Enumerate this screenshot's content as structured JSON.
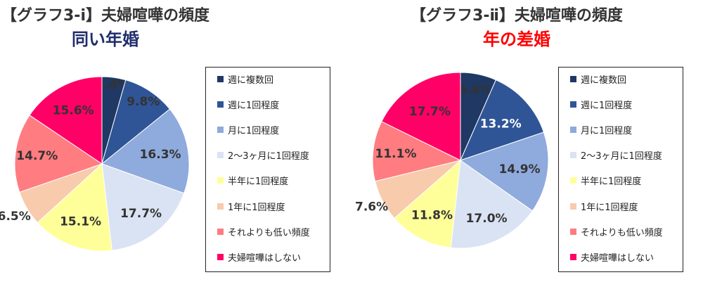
{
  "chart_data": [
    {
      "type": "pie",
      "title": "【グラフ3-ⅰ】夫婦喧嘩の頻度",
      "subtitle": "同い年婚",
      "subtitle_color": "#1f2d6b",
      "categories": [
        "週に複数回",
        "週に1回程度",
        "月に1回程度",
        "2～3ヶ月に1回程度",
        "半年に1回程度",
        "1年に1回程度",
        "それよりも低い頻度",
        "夫婦喧嘩はしない"
      ],
      "values": [
        4.4,
        9.8,
        16.3,
        17.7,
        15.1,
        6.5,
        14.7,
        15.6
      ],
      "labels": [
        "4.4%",
        "9.8%",
        "16.3%",
        "17.7%",
        "15.1%",
        "6.5%",
        "14.7%",
        "15.6%"
      ],
      "legend_position": "right"
    },
    {
      "type": "pie",
      "title": "【グラフ3-ⅱ】夫婦喧嘩の頻度",
      "subtitle": "年の差婚",
      "subtitle_color": "#ff0000",
      "categories": [
        "週に複数回",
        "週に1回程度",
        "月に1回程度",
        "2～3ヶ月に1回程度",
        "半年に1回程度",
        "1年に1回程度",
        "それよりも低い頻度",
        "夫婦喧嘩はしない"
      ],
      "values": [
        6.6,
        13.2,
        14.9,
        17.0,
        11.8,
        7.6,
        11.1,
        17.7
      ],
      "labels": [
        "6.6%",
        "13.2%",
        "14.9%",
        "17.0%",
        "11.8%",
        "7.6%",
        "11.1%",
        "17.7%"
      ],
      "legend_position": "right"
    }
  ],
  "colors": [
    "#1f3864",
    "#2f5597",
    "#8faadc",
    "#dae3f3",
    "#ffff99",
    "#f8cbad",
    "#ff7c80",
    "#ff0066"
  ],
  "label_colors": [
    "#333333",
    "#333333",
    "#333333",
    "#333333",
    "#333333",
    "#333333",
    "#333333",
    "#333333"
  ]
}
